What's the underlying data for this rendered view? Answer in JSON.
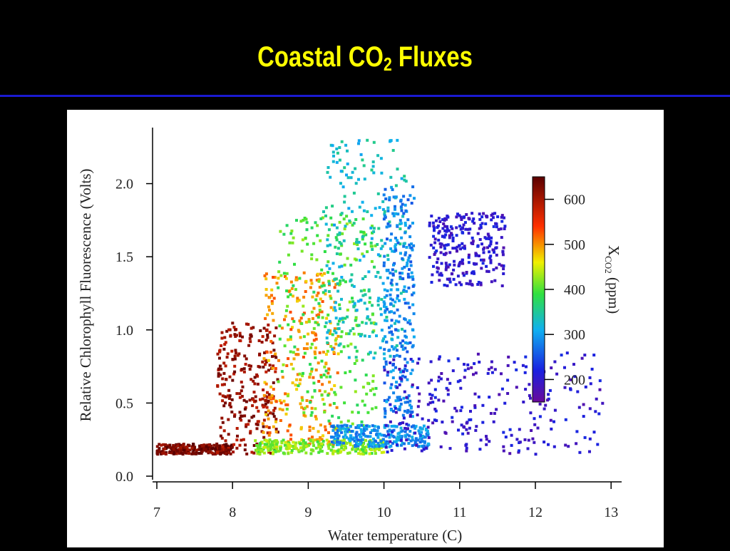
{
  "slide": {
    "title_main": "Coastal CO",
    "title_sub": "2",
    "title_tail": " Fluxes",
    "title_color": "#ffff00",
    "rule_color": "#1a1ad0"
  },
  "chart_data": {
    "type": "scatter",
    "xlabel": "Water temperature (C)",
    "ylabel": "Relative Chlorophyll Fluorescence (Volts)",
    "xlim": [
      7,
      13.2
    ],
    "ylim": [
      0,
      2.4
    ],
    "x_ticks": [
      "7",
      "8",
      "9",
      "10",
      "11",
      "12",
      "13"
    ],
    "y_ticks": [
      "0.0",
      "0.5",
      "1.0",
      "1.5",
      "2.0"
    ],
    "colorbar": {
      "label_main": "X",
      "label_sub": "CO2",
      "label_tail": " (ppm)",
      "range": [
        150,
        650
      ],
      "ticks": [
        "200",
        "300",
        "400",
        "500",
        "600"
      ],
      "colormap": "rainbow (violet-blue-cyan-green-yellow-red-dark red)"
    },
    "point_groups": [
      {
        "x_range": [
          7.0,
          8.0
        ],
        "y_range": [
          0.15,
          0.22
        ],
        "color_value": 630
      },
      {
        "x_range": [
          7.8,
          8.6
        ],
        "y_range": [
          0.15,
          1.05
        ],
        "color_value": 610
      },
      {
        "x_range": [
          8.4,
          9.4
        ],
        "y_range": [
          0.2,
          1.4
        ],
        "color_value": 500
      },
      {
        "x_range": [
          8.6,
          9.9
        ],
        "y_range": [
          0.3,
          1.8
        ],
        "color_value": 400
      },
      {
        "x_range": [
          9.2,
          10.3
        ],
        "y_range": [
          0.8,
          2.3
        ],
        "color_value": 330
      },
      {
        "x_range": [
          10.0,
          10.4
        ],
        "y_range": [
          0.4,
          2.0
        ],
        "color_value": 280
      },
      {
        "x_range": [
          8.3,
          10.0
        ],
        "y_range": [
          0.15,
          0.25
        ],
        "color_value": 420
      },
      {
        "x_range": [
          9.3,
          10.6
        ],
        "y_range": [
          0.2,
          0.35
        ],
        "color_value": 290
      },
      {
        "x_range": [
          10.0,
          12.9
        ],
        "y_range": [
          0.15,
          0.85
        ],
        "color_value": 200
      },
      {
        "x_range": [
          10.6,
          11.6
        ],
        "y_range": [
          1.3,
          1.8
        ],
        "color_value": 200
      }
    ]
  }
}
